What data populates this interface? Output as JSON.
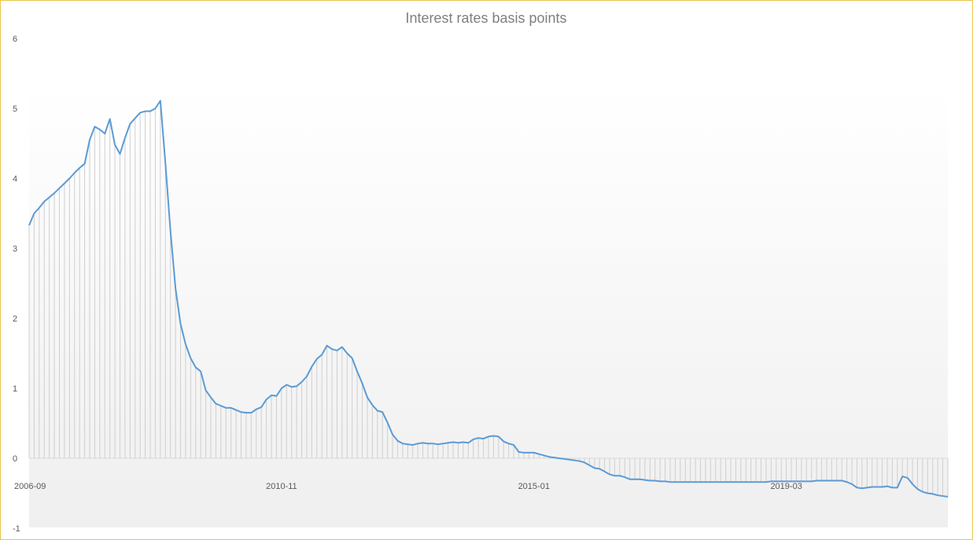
{
  "chart_data": {
    "type": "line",
    "title": "Interest rates basis points",
    "xlabel": "",
    "ylabel": "",
    "ylim": [
      -1,
      6
    ],
    "y_ticks": [
      -1,
      0,
      1,
      2,
      3,
      4,
      5,
      6
    ],
    "x_tick_labels": [
      "2006-09",
      "2010-11",
      "2015-01",
      "2019-03"
    ],
    "x_tick_indices": [
      0,
      50,
      100,
      150
    ],
    "grid": false,
    "drop_lines": true,
    "legend": "none",
    "colors": {
      "series": "#5b9bd5",
      "frame": "#e8c44a",
      "drop_line": "#cfcfcf",
      "title": "#7f7f7f"
    },
    "series": [
      {
        "values": [
          3.33,
          3.5,
          3.58,
          3.67,
          3.73,
          3.79,
          3.86,
          3.93,
          4.0,
          4.08,
          4.15,
          4.21,
          4.55,
          4.74,
          4.7,
          4.64,
          4.85,
          4.48,
          4.35,
          4.58,
          4.78,
          4.86,
          4.94,
          4.96,
          4.96,
          5.0,
          5.11,
          4.22,
          3.25,
          2.43,
          1.92,
          1.63,
          1.43,
          1.3,
          1.24,
          0.97,
          0.87,
          0.78,
          0.75,
          0.72,
          0.72,
          0.69,
          0.66,
          0.65,
          0.65,
          0.7,
          0.73,
          0.84,
          0.9,
          0.89,
          1.0,
          1.05,
          1.02,
          1.03,
          1.09,
          1.17,
          1.31,
          1.42,
          1.48,
          1.61,
          1.56,
          1.54,
          1.59,
          1.5,
          1.43,
          1.24,
          1.07,
          0.87,
          0.76,
          0.68,
          0.66,
          0.51,
          0.34,
          0.25,
          0.21,
          0.2,
          0.19,
          0.21,
          0.22,
          0.21,
          0.21,
          0.2,
          0.21,
          0.22,
          0.23,
          0.22,
          0.23,
          0.22,
          0.27,
          0.29,
          0.28,
          0.31,
          0.32,
          0.31,
          0.24,
          0.21,
          0.19,
          0.09,
          0.08,
          0.08,
          0.08,
          0.06,
          0.04,
          0.02,
          0.01,
          0.0,
          -0.01,
          -0.02,
          -0.03,
          -0.04,
          -0.06,
          -0.1,
          -0.14,
          -0.15,
          -0.19,
          -0.23,
          -0.25,
          -0.25,
          -0.27,
          -0.3,
          -0.3,
          -0.3,
          -0.31,
          -0.32,
          -0.32,
          -0.33,
          -0.33,
          -0.34,
          -0.34,
          -0.34,
          -0.34,
          -0.34,
          -0.34,
          -0.34,
          -0.34,
          -0.34,
          -0.34,
          -0.34,
          -0.34,
          -0.34,
          -0.34,
          -0.34,
          -0.34,
          -0.34,
          -0.34,
          -0.34,
          -0.34,
          -0.33,
          -0.33,
          -0.33,
          -0.33,
          -0.33,
          -0.33,
          -0.33,
          -0.33,
          -0.33,
          -0.32,
          -0.32,
          -0.32,
          -0.32,
          -0.32,
          -0.32,
          -0.34,
          -0.37,
          -0.42,
          -0.43,
          -0.42,
          -0.41,
          -0.41,
          -0.41,
          -0.4,
          -0.42,
          -0.42,
          -0.26,
          -0.28,
          -0.37,
          -0.44,
          -0.48,
          -0.5,
          -0.51,
          -0.53,
          -0.54,
          -0.55
        ]
      }
    ]
  }
}
